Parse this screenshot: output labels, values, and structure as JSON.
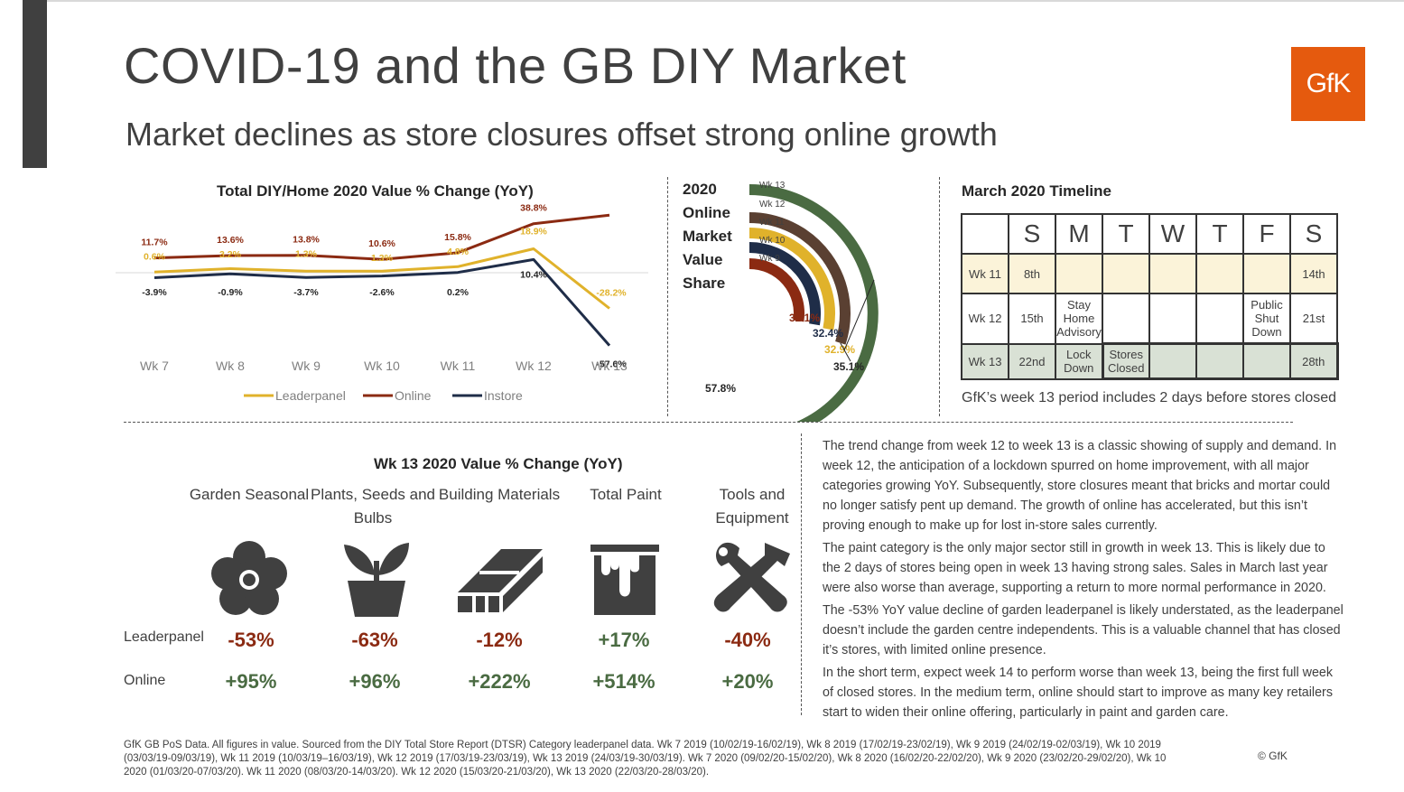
{
  "header": {
    "title": "COVID-19 and the GB DIY Market",
    "subtitle": "Market declines as store closures offset strong online growth",
    "logo_text": "GfK"
  },
  "colors": {
    "leaderpanel": "#e0b22b",
    "online": "#8b2a12",
    "instore": "#1f2d48",
    "wk13": "#4a6b42",
    "wk12": "#5a4032",
    "logo": "#e55a0e",
    "negative": "#8b2a12",
    "positive": "#4a6b42"
  },
  "chart_data": [
    {
      "type": "line",
      "title": "Total DIY/Home 2020 Value % Change (YoY)",
      "categories": [
        "Wk 7",
        "Wk 8",
        "Wk 9",
        "Wk 10",
        "Wk 11",
        "Wk 12",
        "Wk 13"
      ],
      "series": [
        {
          "name": "Leaderpanel",
          "values": [
            0.6,
            3.2,
            1.3,
            1.3,
            4.8,
            18.9,
            -28.2
          ],
          "labels": [
            "0.6%",
            "3.2%",
            "1.3%",
            "1.3%",
            "4.8%",
            "18.9%",
            "-28.2%"
          ]
        },
        {
          "name": "Online",
          "values": [
            11.7,
            13.6,
            13.8,
            10.6,
            15.8,
            38.8,
            45.6
          ],
          "labels": [
            "11.7%",
            "13.6%",
            "13.8%",
            "10.6%",
            "15.8%",
            "38.8%",
            "45.6%"
          ]
        },
        {
          "name": "Instore",
          "values": [
            -3.9,
            -0.9,
            -3.7,
            -2.6,
            0.2,
            10.4,
            -57.6
          ],
          "labels": [
            "-3.9%",
            "-0.9%",
            "-3.7%",
            "-2.6%",
            "0.2%",
            "10.4%",
            "-57.6%"
          ]
        }
      ],
      "legend": "bottom"
    },
    {
      "type": "bar",
      "title": "2020 Online Market Value Share",
      "categories": [
        "Wk 13",
        "Wk 12",
        "Wk 11",
        "Wk 10",
        "Wk 9"
      ],
      "values": [
        57.8,
        35.1,
        32.9,
        32.4,
        32.1
      ],
      "labels": [
        "57.8%",
        "35.1%",
        "32.9%",
        "32.4%",
        "32.1%"
      ]
    }
  ],
  "share": {
    "title_lines": [
      "2020",
      "Online",
      "Market",
      "Value",
      "Share"
    ]
  },
  "timeline": {
    "title": "March 2020 Timeline",
    "days": [
      "S",
      "M",
      "T",
      "W",
      "T",
      "F",
      "S"
    ],
    "rows": [
      {
        "week": "Wk 11",
        "cells": [
          "8th",
          "",
          "",
          "",
          "",
          "",
          "14th"
        ]
      },
      {
        "week": "Wk 12",
        "cells": [
          "15th",
          "Stay Home Advisory",
          "",
          "",
          "",
          "Public Shut Down",
          "21st"
        ]
      },
      {
        "week": "Wk 13",
        "cells": [
          "22nd",
          "Lock Down",
          "Stores Closed",
          "",
          "",
          "",
          "28th"
        ]
      }
    ],
    "note": "GfK’s week 13 period includes 2 days before stores closed"
  },
  "categories_panel": {
    "title": "Wk 13 2020 Value % Change (YoY)",
    "row_labels": [
      "Leaderpanel",
      "Online"
    ],
    "items": [
      {
        "name": "Garden Seasonal",
        "icon": "flower-icon",
        "leaderpanel": "-53%",
        "online": "+95%"
      },
      {
        "name": "Plants, Seeds and Bulbs",
        "icon": "plant-pot-icon",
        "leaderpanel": "-63%",
        "online": "+96%"
      },
      {
        "name": "Building Materials",
        "icon": "lumber-icon",
        "leaderpanel": "-12%",
        "online": "+222%"
      },
      {
        "name": "Total Paint",
        "icon": "paint-bucket-icon",
        "leaderpanel": "+17%",
        "online": "+514%"
      },
      {
        "name": "Tools and Equipment",
        "icon": "wrench-hammer-icon",
        "leaderpanel": "-40%",
        "online": "+20%"
      }
    ]
  },
  "body_paragraphs": [
    "The trend change from week 12 to week 13 is a classic showing of supply and demand. In week 12, the anticipation of a lockdown spurred on home improvement, with all major categories growing YoY. Subsequently, store closures meant that bricks and mortar could no longer satisfy pent up demand. The growth of online has accelerated, but this isn’t proving enough to make up for lost in-store sales currently.",
    "The paint category is the only major sector still in growth in week 13. This is likely due to the 2 days of stores being open in week 13 having strong sales. Sales in March last year were also worse than average, supporting a return to more normal performance in 2020.",
    "The -53% YoY value decline of garden leaderpanel is likely understated, as the leaderpanel doesn’t include the garden centre independents. This is a valuable channel that has closed it’s stores, with limited online presence.",
    "In the short term, expect week 14 to perform worse than week 13, being the first full week of closed stores. In the medium term, online should start to improve as many key retailers start to widen their online offering, particularly in paint and garden care."
  ],
  "footer": {
    "source": "GfK GB PoS Data. All figures in value. Sourced from the DIY Total Store Report (DTSR) Category leaderpanel data. Wk 7 2019 (10/02/19-16/02/19), Wk 8 2019 (17/02/19-23/02/19), Wk 9 2019 (24/02/19-02/03/19), Wk 10 2019 (03/03/19-09/03/19), Wk 11 2019 (10/03/19–16/03/19), Wk 12 2019 (17/03/19-23/03/19), Wk 13 2019 (24/03/19-30/03/19). Wk 7 2020 (09/02/20-15/02/20), Wk 8 2020 (16/02/20-22/02/20), Wk 9 2020 (23/02/20-29/02/20), Wk 10 2020 (01/03/20-07/03/20). Wk 11 2020 (08/03/20-14/03/20). Wk 12 2020 (15/03/20-21/03/20), Wk 13 2020 (22/03/20-28/03/20).",
    "copyright": "© GfK"
  }
}
